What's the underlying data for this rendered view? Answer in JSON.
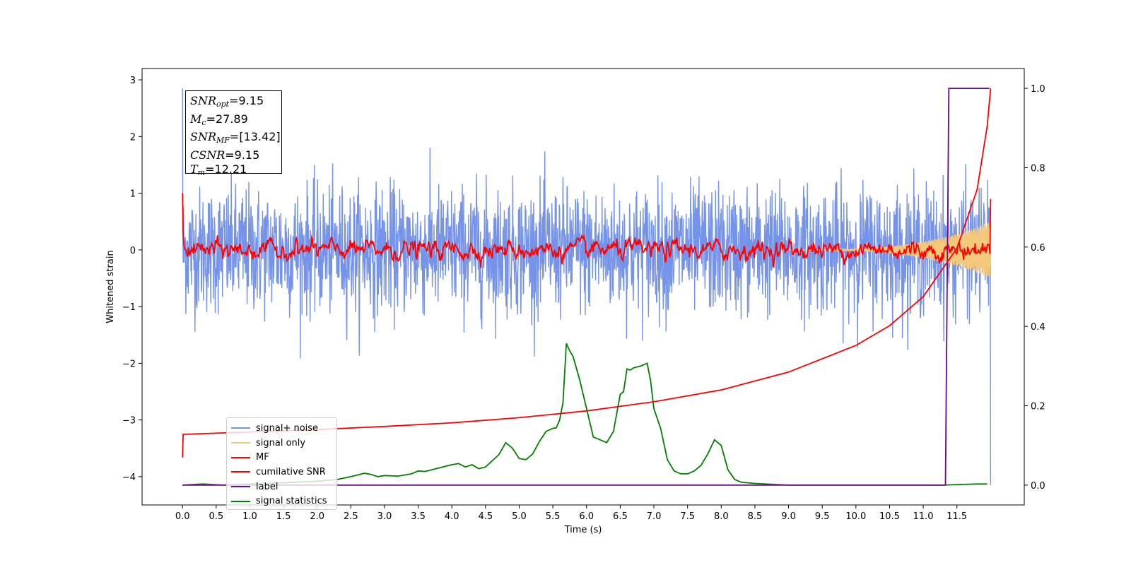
{
  "chart_data": {
    "type": "line",
    "xlabel": "Time (s)",
    "ylabel": "Whitened strain",
    "xlim": [
      -0.6,
      12.5
    ],
    "ylim": [
      -4.5,
      3.2
    ],
    "y2lim": [
      -0.05,
      1.05
    ],
    "xticks": [
      "0.0",
      "0.5",
      "1.0",
      "1.5",
      "2.0",
      "2.5",
      "3.0",
      "3.5",
      "4.0",
      "4.5",
      "5.0",
      "5.5",
      "6.0",
      "6.5",
      "7.0",
      "7.5",
      "8.0",
      "8.5",
      "9.0",
      "9.5",
      "10.0",
      "10.5",
      "11.0",
      "11.5"
    ],
    "yticks": [
      "3",
      "2",
      "1",
      "0",
      "−1",
      "−2",
      "−3",
      "−4"
    ],
    "y2ticks": [
      "1.0",
      "0.8",
      "0.6",
      "0.4",
      "0.2",
      "0.0"
    ],
    "info_box": {
      "snr_opt": "=9.15",
      "mc": "=27.89",
      "snr_mf": "=[13.42]",
      "csnr": "=9.15",
      "tm": "=12.21"
    },
    "legend_position": "lower left",
    "series": [
      {
        "name": "signal+ noise",
        "color": "#7593e8",
        "axis": "left",
        "description_values": {
          "t_start": 0.0,
          "t_end": 12.0,
          "typical_amplitude": 1.2,
          "min": -2.2,
          "max": 2.85
        }
      },
      {
        "name": "signal only",
        "color": "#f5c97a",
        "axis": "left",
        "description_values": {
          "chirp_start": 9.0,
          "chirp_end": 12.0,
          "max_amplitude": 0.5
        }
      },
      {
        "name": "MF",
        "color": "#ff0000",
        "axis": "left",
        "description_values": {
          "start_value": 1.0,
          "typical_amplitude": 0.1,
          "end_value": 0.9
        }
      },
      {
        "name": "cumilative SNR",
        "color": "#ff0000",
        "axis": "right",
        "x": [
          0.0,
          0.01,
          1.0,
          2.0,
          3.0,
          4.0,
          5.0,
          6.0,
          7.0,
          8.0,
          9.0,
          10.0,
          10.5,
          11.0,
          11.5,
          11.8,
          11.95,
          12.0
        ],
        "y": [
          0.07,
          0.128,
          0.134,
          0.14,
          0.148,
          0.157,
          0.17,
          0.187,
          0.21,
          0.24,
          0.285,
          0.352,
          0.402,
          0.475,
          0.597,
          0.745,
          0.905,
          1.0
        ]
      },
      {
        "name": "label",
        "color": "#6a0a84",
        "axis": "right",
        "x": [
          0.0,
          11.33,
          11.38,
          11.98
        ],
        "y": [
          0.0,
          0.0,
          1.0,
          1.0
        ]
      },
      {
        "name": "signal statistics",
        "color": "#008000",
        "axis": "left",
        "x": [
          0.0,
          0.3,
          0.6,
          1.0,
          1.5,
          2.0,
          2.3,
          2.5,
          2.6,
          2.7,
          2.8,
          2.9,
          3.0,
          3.2,
          3.4,
          3.5,
          3.6,
          3.7,
          3.8,
          3.9,
          4.0,
          4.1,
          4.2,
          4.3,
          4.4,
          4.5,
          4.6,
          4.7,
          4.8,
          4.9,
          5.0,
          5.1,
          5.2,
          5.3,
          5.4,
          5.5,
          5.55,
          5.6,
          5.65,
          5.7,
          5.75,
          5.8,
          5.9,
          6.0,
          6.1,
          6.2,
          6.3,
          6.4,
          6.5,
          6.55,
          6.6,
          6.65,
          6.7,
          6.8,
          6.9,
          6.95,
          7.0,
          7.1,
          7.2,
          7.3,
          7.4,
          7.5,
          7.6,
          7.7,
          7.8,
          7.9,
          8.0,
          8.1,
          8.2,
          8.3,
          8.5,
          9.0,
          9.5,
          10.0,
          10.5,
          11.0,
          11.3,
          11.5,
          11.8,
          11.95
        ],
        "y": [
          -4.15,
          -4.13,
          -4.15,
          -4.13,
          -4.11,
          -4.08,
          -4.05,
          -4.0,
          -3.97,
          -3.94,
          -3.96,
          -4.0,
          -3.98,
          -3.99,
          -3.95,
          -3.9,
          -3.91,
          -3.88,
          -3.85,
          -3.82,
          -3.79,
          -3.77,
          -3.83,
          -3.79,
          -3.86,
          -3.83,
          -3.72,
          -3.61,
          -3.4,
          -3.5,
          -3.68,
          -3.7,
          -3.6,
          -3.38,
          -3.2,
          -3.15,
          -3.14,
          -3.0,
          -2.7,
          -1.65,
          -1.78,
          -1.88,
          -2.3,
          -2.8,
          -3.3,
          -3.35,
          -3.4,
          -3.2,
          -2.55,
          -2.5,
          -2.1,
          -2.12,
          -2.08,
          -2.05,
          -2.0,
          -2.3,
          -2.8,
          -3.15,
          -3.7,
          -3.9,
          -3.95,
          -3.95,
          -3.9,
          -3.8,
          -3.6,
          -3.35,
          -3.45,
          -3.88,
          -4.05,
          -4.1,
          -4.12,
          -4.15,
          -4.15,
          -4.15,
          -4.15,
          -4.15,
          -4.15,
          -4.14,
          -4.13,
          -4.13
        ]
      }
    ]
  }
}
